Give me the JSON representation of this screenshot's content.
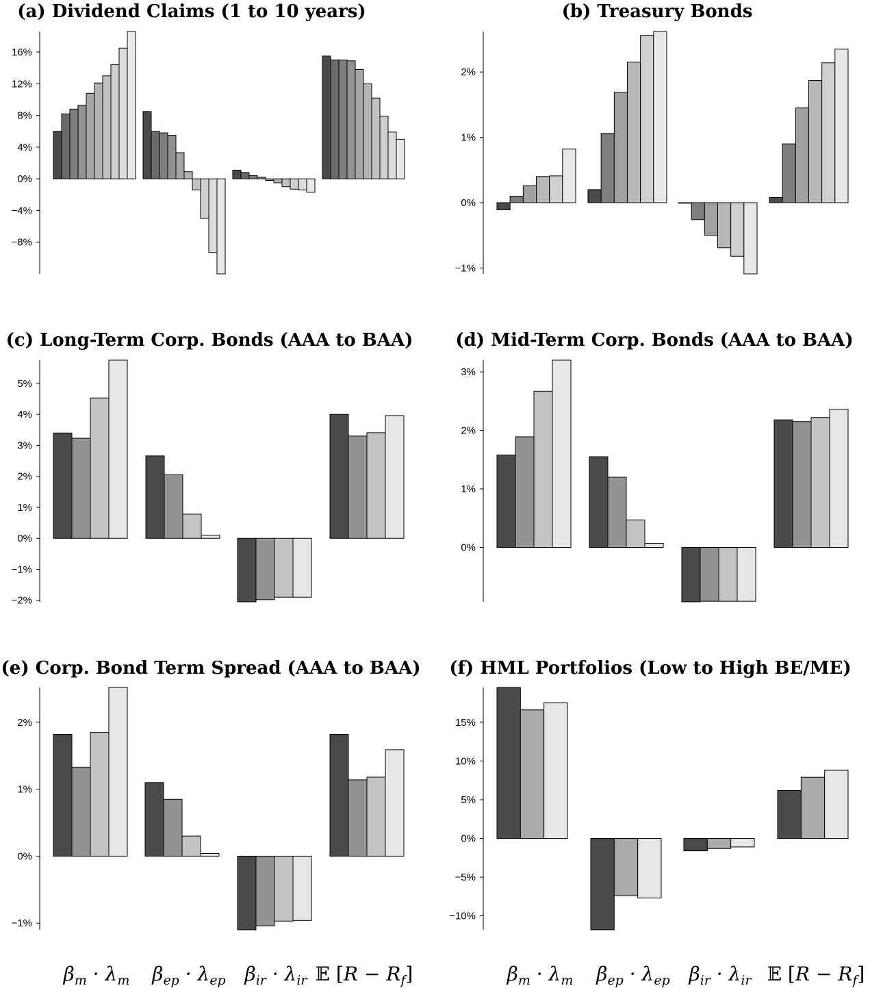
{
  "figure": {
    "xlabels": [
      "βm · λm",
      "βep · λep",
      "βir · λir",
      "𝔼 [R − Rf]"
    ]
  },
  "chart_data": [
    {
      "type": "bar",
      "title": "(a) Dividend Claims (1 to 10 years)",
      "categories": [
        "βm · λm",
        "βep · λep",
        "βir · λir",
        "𝔼 [R − Rf]"
      ],
      "ylim": [
        -12,
        18.6
      ],
      "yticks": [
        16,
        12,
        8,
        4,
        0,
        -4,
        -8
      ],
      "tick_suffix": "%",
      "series": [
        {
          "values": [
            6.0,
            8.5,
            1.1,
            15.5
          ]
        },
        {
          "values": [
            8.2,
            6.0,
            0.8,
            15.0
          ]
        },
        {
          "values": [
            8.8,
            5.8,
            0.4,
            15.0
          ]
        },
        {
          "values": [
            9.3,
            5.5,
            0.2,
            14.9
          ]
        },
        {
          "values": [
            10.8,
            3.3,
            -0.2,
            13.8
          ]
        },
        {
          "values": [
            12.1,
            0.9,
            -0.5,
            12.0
          ]
        },
        {
          "values": [
            13.0,
            -1.4,
            -1.0,
            10.2
          ]
        },
        {
          "values": [
            14.4,
            -5.0,
            -1.3,
            7.9
          ]
        },
        {
          "values": [
            16.5,
            -9.3,
            -1.4,
            5.9
          ]
        },
        {
          "values": [
            18.6,
            -12.0,
            -1.7,
            5.0
          ]
        }
      ]
    },
    {
      "type": "bar",
      "title": "(b) Treasury Bonds",
      "categories": [
        "βm · λm",
        "βep · λep",
        "βir · λir",
        "𝔼 [R − Rf]"
      ],
      "ylim": [
        -1.09,
        2.62
      ],
      "yticks": [
        2,
        1,
        0,
        -1
      ],
      "tick_suffix": "%",
      "series": [
        {
          "values": [
            -0.11,
            0.2,
            0.0,
            0.08
          ]
        },
        {
          "values": [
            0.1,
            1.06,
            -0.26,
            0.9
          ]
        },
        {
          "values": [
            0.26,
            1.69,
            -0.5,
            1.45
          ]
        },
        {
          "values": [
            0.4,
            2.15,
            -0.69,
            1.87
          ]
        },
        {
          "values": [
            0.41,
            2.56,
            -0.82,
            2.14
          ]
        },
        {
          "values": [
            0.82,
            2.62,
            -1.09,
            2.35
          ]
        }
      ]
    },
    {
      "type": "bar",
      "title": "(c) Long-Term Corp. Bonds (AAA to BAA)",
      "categories": [
        "βm · λm",
        "βep · λep",
        "βir · λir",
        "𝔼 [R − Rf]"
      ],
      "ylim": [
        -2.05,
        5.75
      ],
      "yticks": [
        5,
        4,
        3,
        2,
        1,
        0,
        -1,
        -2
      ],
      "tick_suffix": "%",
      "series": [
        {
          "values": [
            3.4,
            2.66,
            -2.05,
            4.0
          ]
        },
        {
          "values": [
            3.23,
            2.05,
            -1.98,
            3.3
          ]
        },
        {
          "values": [
            4.53,
            0.78,
            -1.9,
            3.41
          ]
        },
        {
          "values": [
            5.75,
            0.1,
            -1.9,
            3.96
          ]
        }
      ]
    },
    {
      "type": "bar",
      "title": "(d) Mid-Term Corp. Bonds (AAA to BAA)",
      "categories": [
        "βm · λm",
        "βep · λep",
        "βir · λir",
        "𝔼 [R − Rf]"
      ],
      "ylim": [
        -0.93,
        3.2
      ],
      "yticks": [
        3,
        2,
        1,
        0
      ],
      "tick_suffix": "%",
      "series": [
        {
          "values": [
            1.58,
            1.55,
            -0.93,
            2.18
          ]
        },
        {
          "values": [
            1.89,
            1.2,
            -0.92,
            2.15
          ]
        },
        {
          "values": [
            2.67,
            0.47,
            -0.92,
            2.22
          ]
        },
        {
          "values": [
            3.2,
            0.07,
            -0.92,
            2.36
          ]
        }
      ]
    },
    {
      "type": "bar",
      "title": "(e) Corp. Bond Term Spread (AAA to BAA)",
      "categories": [
        "βm · λm",
        "βep · λep",
        "βir · λir",
        "𝔼 [R − Rf]"
      ],
      "ylim": [
        -1.1,
        2.52
      ],
      "yticks": [
        2,
        1,
        0,
        -1
      ],
      "tick_suffix": "%",
      "series": [
        {
          "values": [
            1.82,
            1.1,
            -1.1,
            1.82
          ]
        },
        {
          "values": [
            1.33,
            0.85,
            -1.04,
            1.14
          ]
        },
        {
          "values": [
            1.85,
            0.3,
            -0.97,
            1.18
          ]
        },
        {
          "values": [
            2.52,
            0.04,
            -0.96,
            1.59
          ]
        }
      ]
    },
    {
      "type": "bar",
      "title": "(f) HML Portfolios (Low to High BE/ME)",
      "categories": [
        "βm · λm",
        "βep · λep",
        "βir · λir",
        "𝔼 [R − Rf]"
      ],
      "ylim": [
        -11.8,
        19.5
      ],
      "yticks": [
        15,
        10,
        5,
        0,
        -5,
        -10
      ],
      "tick_suffix": "%",
      "series": [
        {
          "values": [
            19.5,
            -11.8,
            -1.6,
            6.2
          ]
        },
        {
          "values": [
            16.6,
            -7.4,
            -1.3,
            7.9
          ]
        },
        {
          "values": [
            17.5,
            -7.7,
            -1.1,
            8.8
          ]
        }
      ]
    }
  ],
  "colors": {
    "10": [
      "#4a4a4a",
      "#6a6a6a",
      "#7e7e7e",
      "#929292",
      "#a6a6a6",
      "#b4b4b4",
      "#c2c2c2",
      "#cfcfcf",
      "#dcdcdc",
      "#e8e8e8"
    ],
    "6": [
      "#4a4a4a",
      "#7e7e7e",
      "#a0a0a0",
      "#b8b8b8",
      "#d0d0d0",
      "#e8e8e8"
    ],
    "4": [
      "#4a4a4a",
      "#939393",
      "#c3c3c3",
      "#e6e6e6"
    ],
    "3": [
      "#4a4a4a",
      "#aaaaaa",
      "#e6e6e6"
    ]
  }
}
